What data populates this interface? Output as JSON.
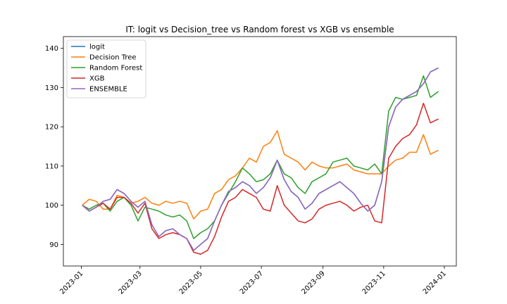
{
  "chart_data": {
    "type": "line",
    "title": "IT: logit vs Decision_tree vs Random forest vs XGB vs ensemble",
    "xlabel": "",
    "ylabel": "",
    "xlim": [
      "2022-12-14",
      "2024-01-13"
    ],
    "ylim": [
      84.5,
      143
    ],
    "x_ticks": [
      "2023-01",
      "2023-03",
      "2023-05",
      "2023-07",
      "2023-09",
      "2023-11",
      "2024-01"
    ],
    "y_ticks": [
      90,
      100,
      110,
      120,
      130,
      140
    ],
    "grid": false,
    "legend_position": "top-left",
    "x": [
      "2023-01-02",
      "2023-01-09",
      "2023-01-16",
      "2023-01-23",
      "2023-01-30",
      "2023-02-06",
      "2023-02-13",
      "2023-02-20",
      "2023-02-27",
      "2023-03-06",
      "2023-03-13",
      "2023-03-20",
      "2023-03-27",
      "2023-04-03",
      "2023-04-10",
      "2023-04-17",
      "2023-04-24",
      "2023-05-01",
      "2023-05-08",
      "2023-05-15",
      "2023-05-22",
      "2023-05-29",
      "2023-06-05",
      "2023-06-12",
      "2023-06-19",
      "2023-06-26",
      "2023-07-03",
      "2023-07-10",
      "2023-07-17",
      "2023-07-24",
      "2023-07-31",
      "2023-08-07",
      "2023-08-14",
      "2023-08-21",
      "2023-08-28",
      "2023-09-04",
      "2023-09-11",
      "2023-09-18",
      "2023-09-25",
      "2023-10-02",
      "2023-10-09",
      "2023-10-16",
      "2023-10-23",
      "2023-10-30",
      "2023-11-06",
      "2023-11-13",
      "2023-11-20",
      "2023-11-27",
      "2023-12-04",
      "2023-12-11",
      "2023-12-18",
      "2023-12-26"
    ],
    "series": [
      {
        "name": "logit",
        "color": "#1f77b4",
        "values": [
          100,
          98.5,
          99.5,
          101,
          101.5,
          104,
          103,
          101,
          99.5,
          101,
          95,
          92,
          93.5,
          94,
          92.5,
          91.5,
          88.5,
          90,
          91.5,
          96,
          100,
          103.5,
          104.5,
          106,
          105,
          103,
          104.5,
          107,
          111.5,
          106.5,
          103.5,
          102,
          99,
          100.5,
          103,
          104,
          105,
          106,
          104.5,
          103,
          100.5,
          98.5,
          100,
          106,
          120,
          125,
          127,
          128,
          129,
          131,
          134,
          135
        ]
      },
      {
        "name": "Decision Tree",
        "color": "#ff7f0e",
        "values": [
          100,
          101.5,
          101,
          99,
          99,
          102.5,
          102,
          100.5,
          101,
          102,
          100.5,
          100,
          101,
          100.5,
          101,
          100.5,
          96.5,
          98.5,
          99,
          103,
          104,
          106.5,
          107.5,
          109.5,
          112,
          111,
          115,
          116,
          119,
          113,
          112,
          111,
          109,
          111,
          110,
          109.5,
          109.5,
          110,
          110.5,
          109,
          108.5,
          108,
          108,
          108,
          110,
          111.5,
          112,
          113.5,
          113.5,
          118,
          113,
          114
        ]
      },
      {
        "name": "Random Forest",
        "color": "#2ca02c",
        "values": [
          100,
          99,
          100,
          100.5,
          98.5,
          101,
          102,
          100,
          96,
          99.5,
          99,
          98.5,
          97.5,
          97,
          97.5,
          96,
          91.5,
          93,
          94,
          96,
          100,
          103,
          106,
          109.5,
          108,
          106,
          106.5,
          108,
          111.5,
          108,
          107,
          104.5,
          103,
          106,
          107,
          108,
          111,
          111.5,
          112,
          110,
          109.5,
          109,
          110.5,
          108,
          124,
          127.5,
          127,
          127.5,
          128,
          133,
          127.5,
          129
        ]
      },
      {
        "name": "XGB",
        "color": "#d62728",
        "values": [
          100,
          98.5,
          99.5,
          100.5,
          99,
          102,
          102,
          100.5,
          98,
          100.5,
          94,
          91.5,
          92.5,
          93,
          92.5,
          91.5,
          88,
          87.5,
          88.5,
          92,
          97,
          101,
          102,
          104,
          103,
          102,
          99,
          98.5,
          105,
          100,
          98,
          96,
          95.5,
          96.5,
          99,
          100,
          100.5,
          101,
          100,
          98.5,
          99.5,
          100,
          96,
          95.5,
          112,
          115,
          117,
          118,
          120.5,
          126,
          121,
          122
        ]
      },
      {
        "name": "ENSEMBLE",
        "color": "#9467bd",
        "values": [
          100,
          98.5,
          99.5,
          101,
          101.5,
          104,
          103,
          101,
          99.5,
          101,
          95,
          92,
          93.5,
          94,
          92.5,
          91.5,
          88.5,
          90,
          91.5,
          96,
          100,
          103.5,
          104.5,
          106,
          105,
          103,
          104.5,
          107,
          111.5,
          106.5,
          103.5,
          102,
          99,
          100.5,
          103,
          104,
          105,
          106,
          104.5,
          103,
          100.5,
          98.5,
          100,
          106,
          120,
          125,
          127,
          128,
          129,
          131,
          134,
          135
        ]
      }
    ]
  }
}
